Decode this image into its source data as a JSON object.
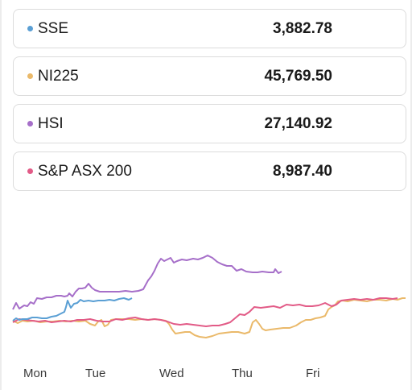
{
  "indices": [
    {
      "name": "SSE",
      "value": "3,882.78",
      "color": "#5a9fd4",
      "icon": "dot-icon"
    },
    {
      "name": "NI225",
      "value": "45,769.50",
      "color": "#eab96a",
      "icon": "dot-icon"
    },
    {
      "name": "HSI",
      "value": "27,140.92",
      "color": "#a66fc9",
      "icon": "dot-icon"
    },
    {
      "name": "S&P ASX 200",
      "value": "8,987.40",
      "color": "#e25b87",
      "icon": "dot-icon"
    }
  ],
  "chart": {
    "days": [
      "Mon",
      "Tue",
      "Wed",
      "Thu",
      "Fri"
    ]
  }
}
